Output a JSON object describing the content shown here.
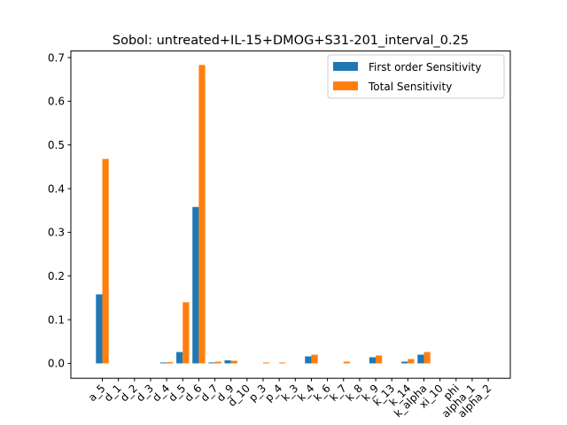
{
  "chart_data": {
    "type": "bar",
    "title": "Sobol: untreated+IL-15+DMOG+S31-201_interval_0.25",
    "xlabel": "",
    "ylabel": "",
    "ylim": [
      -0.034,
      0.715
    ],
    "yticks": [
      0.0,
      0.1,
      0.2,
      0.3,
      0.4,
      0.5,
      0.6,
      0.7
    ],
    "ytick_labels": [
      "0.0",
      "0.1",
      "0.2",
      "0.3",
      "0.4",
      "0.5",
      "0.6",
      "0.7"
    ],
    "grid": false,
    "legend_position": "top-right",
    "categories": [
      "a_5",
      "d_1",
      "d_2",
      "d_3",
      "d_4",
      "d_5",
      "d_6",
      "d_7",
      "d_9",
      "d_10",
      "p_3",
      "p_4",
      "k_3",
      "k_4",
      "k_6",
      "k_7",
      "k_8",
      "k_9",
      "k_13",
      "k_14",
      "k_alpha",
      "xi_10",
      "phi",
      "alpha_1",
      "alpha_2"
    ],
    "series": [
      {
        "name": "First order Sensitivity",
        "color": "#1f77b4",
        "values": [
          0.158,
          0.0,
          0.0,
          0.0,
          0.002,
          0.026,
          0.358,
          0.002,
          0.007,
          0.0,
          0.0,
          0.0,
          0.0,
          0.016,
          0.0,
          0.0,
          0.0,
          0.014,
          0.0,
          0.004,
          0.02,
          0.0,
          0.0,
          0.0,
          0.0
        ]
      },
      {
        "name": "Total Sensitivity",
        "color": "#ff7f0e",
        "values": [
          0.468,
          0.0,
          0.0,
          0.0,
          0.003,
          0.14,
          0.683,
          0.004,
          0.006,
          0.0,
          0.002,
          0.002,
          0.0,
          0.02,
          0.0,
          0.004,
          0.0,
          0.018,
          0.0,
          0.01,
          0.026,
          0.0,
          0.0,
          0.0,
          0.0
        ]
      }
    ]
  }
}
